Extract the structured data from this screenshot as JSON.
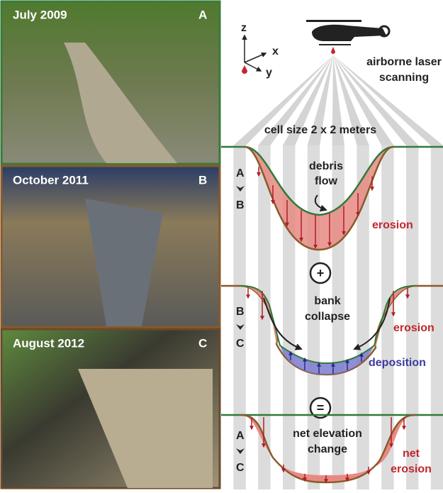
{
  "photos": [
    {
      "date": "July 2009",
      "label": "A"
    },
    {
      "date": "October 2011",
      "label": "B"
    },
    {
      "date": "August 2012",
      "label": "C"
    }
  ],
  "axes": {
    "z": "z",
    "x": "x",
    "y": "y"
  },
  "scanning": {
    "label": [
      "airborne laser",
      "scanning"
    ],
    "cell_size": "cell size 2 x 2 meters"
  },
  "panels": [
    {
      "from": "A",
      "to": "B",
      "process": [
        "debris",
        "flow"
      ],
      "effects": [
        "erosion"
      ]
    },
    {
      "from": "B",
      "to": "C",
      "process": [
        "bank",
        "collapse"
      ],
      "effects": [
        "erosion",
        "deposition"
      ]
    },
    {
      "from": "A",
      "to": "C",
      "process": [
        "net elevation",
        "change"
      ],
      "effects": [
        "net",
        "erosion"
      ]
    }
  ],
  "operators": [
    "+",
    "="
  ]
}
